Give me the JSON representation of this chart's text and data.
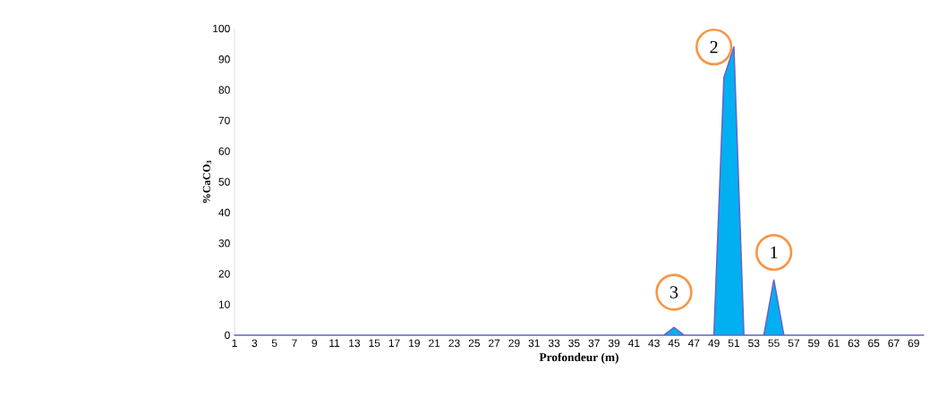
{
  "chart_data": {
    "type": "area",
    "xlabel": "Profondeur (m)",
    "ylabel": "%CaCO$_{3}$",
    "categories": [
      "1",
      null,
      "3",
      null,
      "5",
      null,
      "7",
      null,
      "9",
      null,
      "11",
      null,
      "13",
      null,
      "15",
      null,
      "17",
      null,
      "19",
      null,
      "21",
      null,
      "23",
      null,
      "25",
      null,
      "27",
      null,
      "29",
      null,
      "31",
      null,
      "33",
      null,
      "35",
      null,
      "37",
      null,
      "39",
      null,
      "41",
      null,
      "43",
      null,
      "45",
      null,
      "47",
      null,
      "49",
      null,
      "51",
      null,
      "53",
      null,
      "55",
      null,
      "57",
      null,
      "59",
      null,
      "61",
      null,
      "63",
      null,
      "65",
      null,
      "67",
      null,
      "69",
      null
    ],
    "series": [
      {
        "color": "#00b0f0",
        "values": [
          0,
          0,
          0,
          0,
          0,
          0,
          0,
          0,
          0,
          0,
          0,
          0,
          0,
          0,
          0,
          0,
          0,
          0,
          0,
          0,
          0,
          0,
          0,
          0,
          0,
          0,
          0,
          0,
          0,
          0,
          0,
          0,
          0,
          0,
          0,
          0,
          0,
          0,
          0,
          0,
          0,
          0,
          0,
          0,
          2.5,
          0,
          0,
          0,
          0,
          84,
          94,
          0,
          0,
          0,
          18,
          0,
          0,
          0,
          0,
          0,
          0,
          0,
          0,
          0,
          0,
          0,
          0,
          0,
          0,
          0
        ]
      }
    ],
    "ylim": [
      0,
      100
    ],
    "yticks": [
      0,
      10,
      20,
      30,
      40,
      50,
      60,
      70,
      80,
      90,
      100
    ],
    "annotations": [
      {
        "text": "2",
        "x": "49",
        "y": 94
      },
      {
        "text": "1",
        "x": "55",
        "y": 27
      },
      {
        "text": "3",
        "x": "45",
        "y": 14
      }
    ]
  }
}
